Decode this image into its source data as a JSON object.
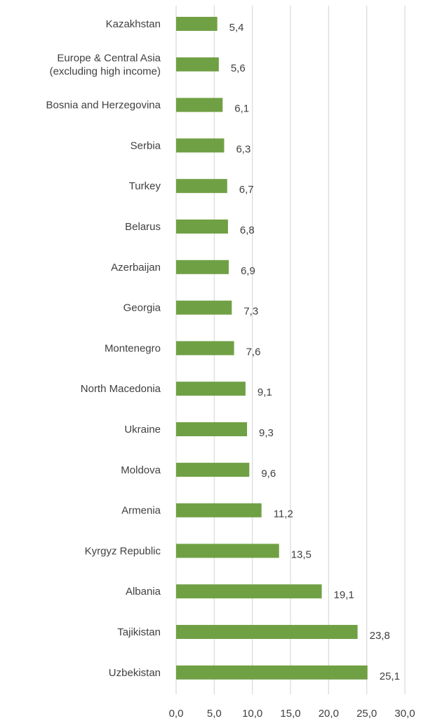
{
  "chart_data": {
    "type": "bar",
    "orientation": "horizontal",
    "title": "",
    "xlabel": "",
    "ylabel": "",
    "categories": [
      "Kazakhstan",
      "Europe & Central Asia (excluding high income)",
      "Bosnia and Herzegovina",
      "Serbia",
      "Turkey",
      "Belarus",
      "Azerbaijan",
      "Georgia",
      "Montenegro",
      "North Macedonia",
      "Ukraine",
      "Moldova",
      "Armenia",
      "Kyrgyz Republic",
      "Albania",
      "Tajikistan",
      "Uzbekistan"
    ],
    "category_lines": [
      [
        "Kazakhstan"
      ],
      [
        "Europe & Central Asia",
        "(excluding high income)"
      ],
      [
        "Bosnia and Herzegovina"
      ],
      [
        "Serbia"
      ],
      [
        "Turkey"
      ],
      [
        "Belarus"
      ],
      [
        "Azerbaijan"
      ],
      [
        "Georgia"
      ],
      [
        "Montenegro"
      ],
      [
        "North Macedonia"
      ],
      [
        "Ukraine"
      ],
      [
        "Moldova"
      ],
      [
        "Armenia"
      ],
      [
        "Kyrgyz Republic"
      ],
      [
        "Albania"
      ],
      [
        "Tajikistan"
      ],
      [
        "Uzbekistan"
      ]
    ],
    "values": [
      5.4,
      5.6,
      6.1,
      6.3,
      6.7,
      6.8,
      6.9,
      7.3,
      7.6,
      9.1,
      9.3,
      9.6,
      11.2,
      13.5,
      19.1,
      23.8,
      25.1
    ],
    "value_labels": [
      "5,4",
      "5,6",
      "6,1",
      "6,3",
      "6,7",
      "6,8",
      "6,9",
      "7,3",
      "7,6",
      "9,1",
      "9,3",
      "9,6",
      "11,2",
      "13,5",
      "19,1",
      "23,8",
      "25,1"
    ],
    "xlim": [
      0,
      30
    ],
    "x_ticks": [
      0,
      5,
      10,
      15,
      20,
      25,
      30
    ],
    "x_tick_labels": [
      "0,0",
      "5,0",
      "10,0",
      "15,0",
      "20,0",
      "25,0",
      "30,0"
    ],
    "grid": true,
    "legend": "none",
    "bar_color": "#70a044",
    "grid_color": "#d9d9d9",
    "text_color": "#404040"
  }
}
